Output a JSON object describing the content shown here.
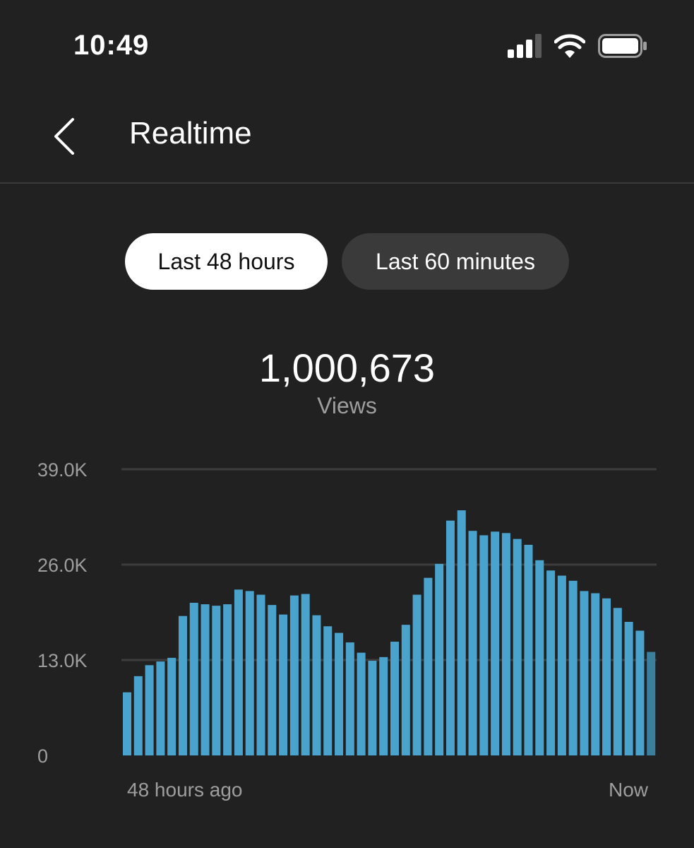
{
  "status_bar": {
    "time": "10:49",
    "icons": [
      "cellular-signal-icon",
      "wifi-icon",
      "battery-icon"
    ]
  },
  "header": {
    "back_icon": "chevron-left-icon",
    "title": "Realtime"
  },
  "tabs": [
    {
      "label": "Last 48 hours",
      "selected": true
    },
    {
      "label": "Last 60 minutes",
      "selected": false
    }
  ],
  "metric": {
    "value": "1,000,673",
    "label": "Views"
  },
  "colors": {
    "background": "#212121",
    "bar": "#4aa3cc",
    "gridline": "#3d3d3d",
    "muted_text": "#9e9e9e"
  },
  "chart_data": {
    "type": "bar",
    "ylim": [
      0,
      39000
    ],
    "y_ticks": [
      {
        "value": 0,
        "label": "0"
      },
      {
        "value": 13000,
        "label": "13.0K"
      },
      {
        "value": 26000,
        "label": "26.0K"
      },
      {
        "value": 39000,
        "label": "39.0K"
      }
    ],
    "x_labels": {
      "start": "48 hours ago",
      "end": "Now"
    },
    "values": [
      8600,
      10800,
      12300,
      12800,
      13300,
      19000,
      20800,
      20600,
      20400,
      20600,
      22600,
      22400,
      21900,
      20500,
      19200,
      21800,
      22000,
      19100,
      17600,
      16700,
      15400,
      14000,
      12900,
      13400,
      15500,
      17800,
      21900,
      24200,
      26100,
      32000,
      33400,
      30600,
      30000,
      30500,
      30300,
      29500,
      28700,
      26600,
      25200,
      24500,
      23800,
      22400,
      22100,
      21400,
      20100,
      18200,
      17000,
      14100
    ],
    "grid": true
  }
}
